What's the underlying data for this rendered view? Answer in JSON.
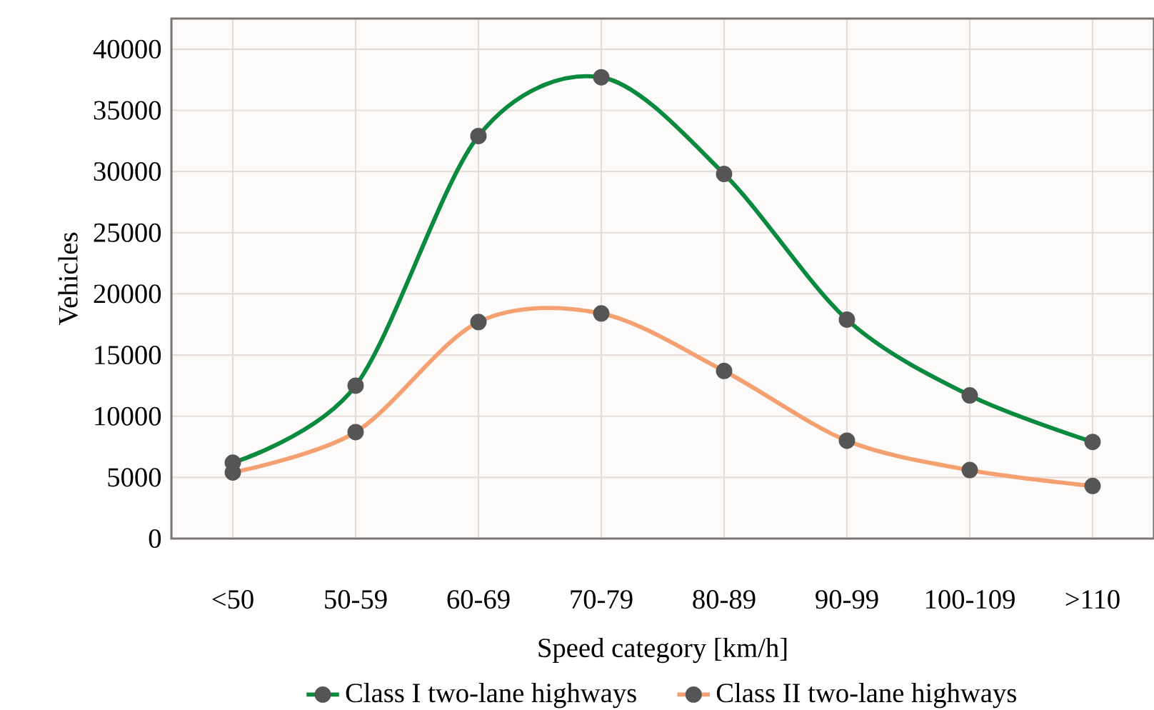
{
  "chart_data": {
    "type": "line",
    "xlabel": "Speed category [km/h]",
    "ylabel": "Vehicles",
    "categories": [
      "<50",
      "50-59",
      "60-69",
      "70-79",
      "80-89",
      "90-99",
      "100-109",
      ">110"
    ],
    "series": [
      {
        "name": "Class I two-lane highways",
        "color": "#0a8a3e",
        "values": [
          6200,
          12500,
          32900,
          37700,
          29800,
          17900,
          11700,
          7900
        ]
      },
      {
        "name": "Class II two-lane highways",
        "color": "#f4a070",
        "values": [
          5400,
          8700,
          17700,
          18400,
          13700,
          8000,
          5600,
          4300
        ]
      }
    ],
    "ylim": [
      0,
      42500
    ],
    "yticks": [
      0,
      5000,
      10000,
      15000,
      20000,
      25000,
      30000,
      35000,
      40000
    ],
    "grid": true,
    "legend": "bottom",
    "marker": "circle",
    "line_style": "solid"
  }
}
